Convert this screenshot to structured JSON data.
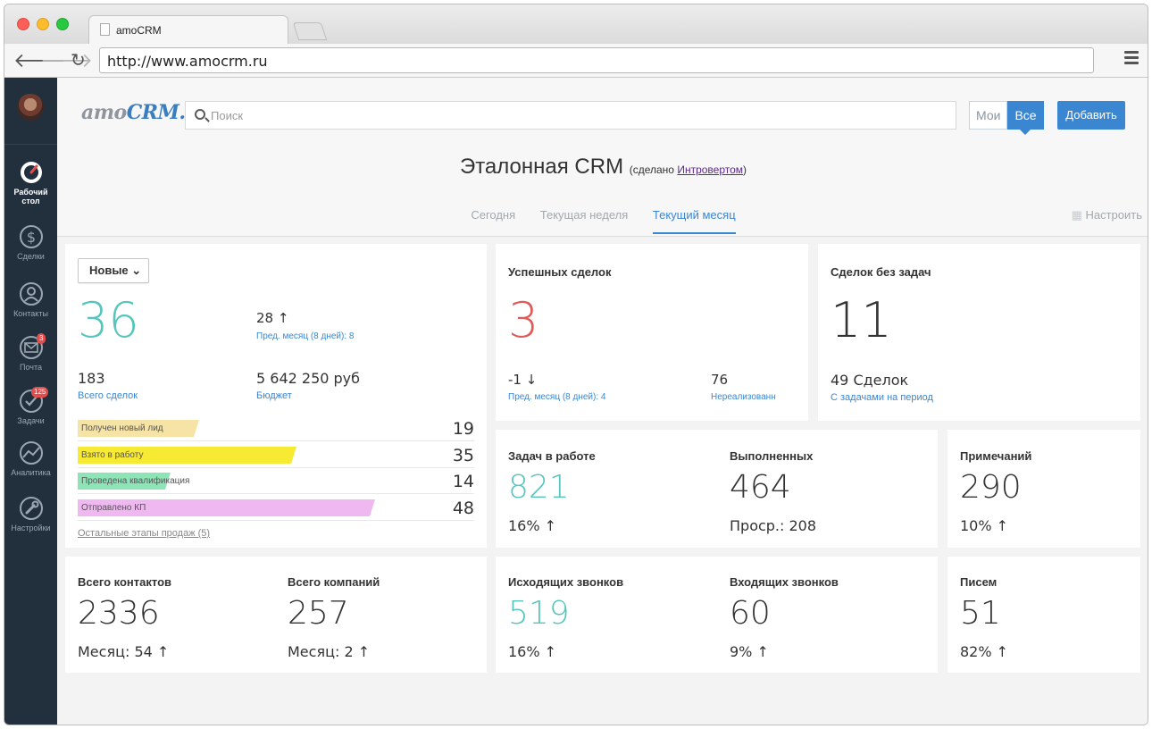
{
  "browser": {
    "tab_title": "amoCRM",
    "url": "http://www.amocrm.ru"
  },
  "sidebar": {
    "items": [
      {
        "label": "Рабочий стол",
        "icon": "dashboard-icon",
        "active": true
      },
      {
        "label": "Сделки",
        "icon": "dollar-icon"
      },
      {
        "label": "Контакты",
        "icon": "contacts-icon"
      },
      {
        "label": "Почта",
        "icon": "mail-icon",
        "badge": "3"
      },
      {
        "label": "Задачи",
        "icon": "tasks-icon",
        "badge": "125"
      },
      {
        "label": "Аналитика",
        "icon": "analytics-icon"
      },
      {
        "label": "Настройки",
        "icon": "settings-icon"
      }
    ]
  },
  "header": {
    "logo_prefix": "amo",
    "logo_suffix": "CRM.",
    "search_placeholder": "Поиск",
    "seg_mine": "Мои",
    "seg_all": "Все",
    "add_label": "Добавить",
    "title": "Эталонная CRM",
    "made_by_prefix": "(сделано ",
    "made_by_link": "Интровертом",
    "made_by_suffix": ")",
    "periods": [
      "Сегодня",
      "Текущая неделя",
      "Текущий месяц"
    ],
    "active_period": "Текущий месяц",
    "configure": "Настроить"
  },
  "leads_card": {
    "filter": "Новые",
    "count": "36",
    "prev_value": "28 ↑",
    "prev_label": "Пред. месяц (8 дней): 8",
    "total_deals_value": "183",
    "total_deals_label": "Всего сделок",
    "budget_value": "5 642 250 руб",
    "budget_label": "Бюджет",
    "stages": [
      {
        "label": "Получен новый лид",
        "value": "19",
        "color": "#f6e3a6"
      },
      {
        "label": "Взято в работу",
        "value": "35",
        "color": "#f7ea33"
      },
      {
        "label": "Проведена квалификация",
        "value": "14",
        "color": "#8de5b7"
      },
      {
        "label": "Отправлено КП",
        "value": "48",
        "color": "#efb8f0"
      }
    ],
    "more_link": "Остальные этапы продаж (5)"
  },
  "success_card": {
    "title": "Успешных сделок",
    "count": "3",
    "delta": "-1 ↓",
    "delta_label": "Пред. месяц (8 дней): 4",
    "unrealized_value": "76",
    "unrealized_label": "Нереализованн"
  },
  "no_tasks_card": {
    "title": "Сделок без задач",
    "count": "11",
    "deals_value": "49 Сделок",
    "deals_label": "С задачами на период"
  },
  "tasks_card": {
    "in_work_title": "Задач в работе",
    "in_work_value": "821",
    "in_work_delta": "16% ↑",
    "done_title": "Выполненных",
    "done_value": "464",
    "done_overdue": "Проср.: 208"
  },
  "notes_card": {
    "title": "Примечаний",
    "value": "290",
    "delta": "10% ↑"
  },
  "contacts_card": {
    "contacts_title": "Всего контактов",
    "contacts_value": "2336",
    "contacts_month": "Месяц: 54 ↑",
    "companies_title": "Всего компаний",
    "companies_value": "257",
    "companies_month": "Месяц: 2 ↑"
  },
  "calls_card": {
    "out_title": "Исходящих звонков",
    "out_value": "519",
    "out_delta": "16% ↑",
    "in_title": "Входящих звонков",
    "in_value": "60",
    "in_delta": "9% ↑"
  },
  "letters_card": {
    "title": "Писем",
    "value": "51",
    "delta": "82% ↑"
  }
}
